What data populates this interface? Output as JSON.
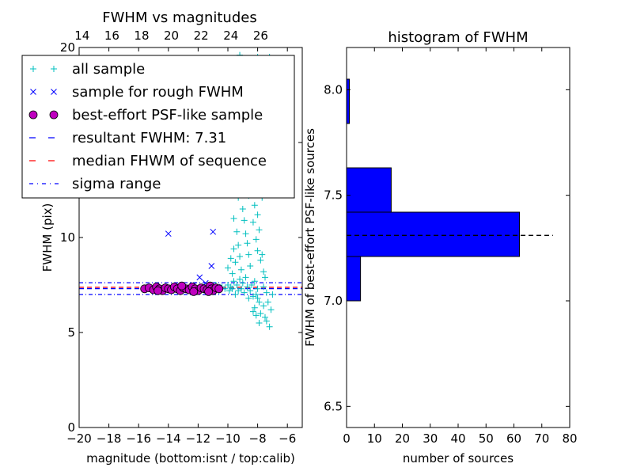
{
  "chart_data": [
    {
      "type": "scatter",
      "title": "FWHM vs magnitudes",
      "xlabel": "magnitude (bottom:isnt / top:calib)",
      "ylabel": "FWHM (pix)",
      "xlim": [
        -20,
        -5
      ],
      "ylim": [
        0,
        20
      ],
      "x_ticks": [
        -20,
        -18,
        -16,
        -14,
        -12,
        -10,
        -8,
        -6
      ],
      "x_tick_labels": [
        "−20",
        "−18",
        "−16",
        "−14",
        "−12",
        "−10",
        "−8",
        "−6"
      ],
      "y_ticks": [
        0,
        5,
        10,
        15,
        20
      ],
      "y_tick_labels": [
        "0",
        "5",
        "10",
        "15",
        "20"
      ],
      "top_ticks": [
        14,
        16,
        18,
        20,
        22,
        24,
        26
      ],
      "top_tick_labels": [
        "14",
        "16",
        "18",
        "20",
        "22",
        "24",
        "26"
      ],
      "top_axis_offset": 33.8,
      "legend_position": "upper-left",
      "legend": [
        {
          "label": "all sample",
          "marker": "plus",
          "color": "#00bfbf"
        },
        {
          "label": "sample for rough FWHM",
          "marker": "x",
          "color": "#0000ff"
        },
        {
          "label": "best-effort PSF-like sample",
          "marker": "circle",
          "color": "#bf00bf"
        },
        {
          "label": "resultant FWHM: 7.31",
          "marker": "dashed",
          "color": "#0000ff"
        },
        {
          "label": "median FHWM of sequence",
          "marker": "dashed",
          "color": "#ff0000"
        },
        {
          "label": "sigma range",
          "marker": "dashdot",
          "color": "#0000ff"
        }
      ],
      "series": [
        {
          "name": "all sample",
          "marker": "plus",
          "color": "#00bfbf",
          "points": [
            [
              -7.2,
              5.3
            ],
            [
              -7.4,
              5.6
            ],
            [
              -7.1,
              6.2
            ],
            [
              -7.5,
              5.8
            ],
            [
              -7.3,
              6.6
            ],
            [
              -7.6,
              6.4
            ],
            [
              -7.8,
              6.0
            ],
            [
              -7.9,
              5.5
            ],
            [
              -8.0,
              6.8
            ],
            [
              -8.1,
              7.0
            ],
            [
              -8.2,
              6.3
            ],
            [
              -8.3,
              6.9
            ],
            [
              -8.0,
              7.3
            ],
            [
              -8.4,
              7.5
            ],
            [
              -8.2,
              7.7
            ],
            [
              -8.5,
              7.2
            ],
            [
              -8.6,
              6.8
            ],
            [
              -8.7,
              7.4
            ],
            [
              -8.8,
              7.9
            ],
            [
              -8.9,
              7.1
            ],
            [
              -9.0,
              7.6
            ],
            [
              -9.1,
              7.3
            ],
            [
              -9.2,
              7.8
            ],
            [
              -9.3,
              7.2
            ],
            [
              -9.4,
              7.5
            ],
            [
              -9.5,
              7.0
            ],
            [
              -9.6,
              7.7
            ],
            [
              -9.7,
              7.3
            ],
            [
              -9.8,
              7.4
            ],
            [
              -9.9,
              7.2
            ],
            [
              -10.0,
              7.5
            ],
            [
              -10.2,
              7.3
            ],
            [
              -10.4,
              7.4
            ],
            [
              -10.6,
              7.2
            ],
            [
              -10.8,
              7.5
            ],
            [
              -11.0,
              7.3
            ],
            [
              -7.6,
              8.2
            ],
            [
              -7.8,
              8.8
            ],
            [
              -8.0,
              9.3
            ],
            [
              -8.1,
              9.9
            ],
            [
              -7.9,
              10.4
            ],
            [
              -8.3,
              10.8
            ],
            [
              -8.0,
              11.2
            ],
            [
              -8.2,
              11.7
            ],
            [
              -7.7,
              12.1
            ],
            [
              -8.4,
              12.6
            ],
            [
              -8.1,
              13.0
            ],
            [
              -7.9,
              13.5
            ],
            [
              -8.3,
              14.1
            ],
            [
              -8.0,
              14.7
            ],
            [
              -8.5,
              8.5
            ],
            [
              -8.6,
              9.1
            ],
            [
              -8.7,
              9.7
            ],
            [
              -8.8,
              10.2
            ],
            [
              -8.9,
              10.9
            ],
            [
              -9.0,
              11.5
            ],
            [
              -9.1,
              8.3
            ],
            [
              -9.2,
              9.0
            ],
            [
              -9.3,
              9.6
            ],
            [
              -9.4,
              10.3
            ],
            [
              -9.5,
              8.7
            ],
            [
              -9.6,
              9.4
            ],
            [
              -9.7,
              8.1
            ],
            [
              -9.8,
              8.9
            ],
            [
              -10.0,
              8.4
            ],
            [
              -7.5,
              7.9
            ],
            [
              -7.7,
              9.1
            ],
            [
              -8.6,
              12.2
            ],
            [
              -8.2,
              12.9
            ],
            [
              -8.4,
              13.7
            ],
            [
              -8.0,
              15.5
            ],
            [
              -8.3,
              16.2
            ],
            [
              -7.9,
              16.8
            ],
            [
              -8.1,
              17.4
            ],
            [
              -8.5,
              15.1
            ],
            [
              -8.8,
              14.3
            ],
            [
              -7.8,
              18.2
            ],
            [
              -8.2,
              18.9
            ],
            [
              -9.0,
              13.4
            ],
            [
              -9.3,
              12.1
            ],
            [
              -9.6,
              11.0
            ],
            [
              -8.0,
              19.5
            ],
            [
              -9.2,
              19.6
            ],
            [
              -9.6,
              19.2
            ],
            [
              -8.4,
              19.3
            ],
            [
              -10.2,
              19.4
            ],
            [
              -7.2,
              19.5
            ],
            [
              -8.7,
              19.1
            ],
            [
              -7.9,
              6.6
            ],
            [
              -8.1,
              5.9
            ],
            [
              -7.4,
              7.1
            ],
            [
              -7.6,
              7.4
            ],
            [
              -8.3,
              6.1
            ],
            [
              -7.0,
              7.0
            ]
          ]
        },
        {
          "name": "sample for rough FWHM",
          "marker": "x",
          "color": "#0000ff",
          "points": [
            [
              -14.0,
              10.2
            ],
            [
              -11.0,
              10.3
            ],
            [
              -11.1,
              8.5
            ],
            [
              -11.9,
              7.9
            ],
            [
              -11.5,
              7.6
            ],
            [
              -12.3,
              7.5
            ],
            [
              -13.2,
              7.4
            ],
            [
              -10.7,
              7.4
            ]
          ]
        },
        {
          "name": "best-effort PSF-like sample",
          "marker": "circle",
          "color": "#bf00bf",
          "points": [
            [
              -15.6,
              7.3
            ],
            [
              -15.3,
              7.35
            ],
            [
              -15.0,
              7.25
            ],
            [
              -14.8,
              7.4
            ],
            [
              -14.6,
              7.3
            ],
            [
              -14.4,
              7.2
            ],
            [
              -14.2,
              7.35
            ],
            [
              -14.0,
              7.3
            ],
            [
              -13.8,
              7.25
            ],
            [
              -13.6,
              7.4
            ],
            [
              -13.4,
              7.3
            ],
            [
              -13.2,
              7.2
            ],
            [
              -13.0,
              7.35
            ],
            [
              -12.8,
              7.3
            ],
            [
              -12.6,
              7.25
            ],
            [
              -12.4,
              7.4
            ],
            [
              -12.2,
              7.3
            ],
            [
              -12.0,
              7.2
            ],
            [
              -11.8,
              7.35
            ],
            [
              -11.6,
              7.3
            ],
            [
              -11.4,
              7.25
            ],
            [
              -11.2,
              7.45
            ],
            [
              -11.1,
              7.3
            ],
            [
              -11.0,
              7.2
            ],
            [
              -10.8,
              7.35
            ],
            [
              -10.6,
              7.3
            ],
            [
              -13.1,
              7.45
            ],
            [
              -12.3,
              7.15
            ],
            [
              -11.3,
              7.15
            ],
            [
              -14.7,
              7.2
            ]
          ]
        }
      ],
      "lines": [
        {
          "name": "resultant FWHM: 7.31",
          "y": 7.31,
          "style": "dashed",
          "color": "#0000ff"
        },
        {
          "name": "median FHWM of sequence",
          "y": 7.38,
          "style": "dashed",
          "color": "#ff0000"
        },
        {
          "name": "sigma range upper",
          "y": 7.62,
          "style": "dashdot",
          "color": "#0000ff"
        },
        {
          "name": "sigma range lower",
          "y": 7.0,
          "style": "dashdot",
          "color": "#0000ff"
        }
      ]
    },
    {
      "type": "bar",
      "orientation": "horizontal",
      "title": "histogram of FWHM",
      "xlabel": "number of sources",
      "ylabel": "FWHM of best-effort PSF-like sources",
      "xlim": [
        0,
        80
      ],
      "ylim": [
        6.4,
        8.2
      ],
      "x_ticks": [
        0,
        10,
        20,
        30,
        40,
        50,
        60,
        70,
        80
      ],
      "x_tick_labels": [
        "0",
        "10",
        "20",
        "30",
        "40",
        "50",
        "60",
        "70",
        "80"
      ],
      "y_ticks": [
        6.5,
        7.0,
        7.5,
        8.0
      ],
      "y_tick_labels": [
        "6.5",
        "7.0",
        "7.5",
        "8.0"
      ],
      "color": "#0000ff",
      "bins": [
        {
          "from": 7.0,
          "to": 7.21,
          "count": 5
        },
        {
          "from": 7.21,
          "to": 7.42,
          "count": 62
        },
        {
          "from": 7.42,
          "to": 7.63,
          "count": 16
        },
        {
          "from": 7.84,
          "to": 8.05,
          "count": 1
        }
      ],
      "reference_line": {
        "y": 7.31,
        "x_range": [
          0,
          74
        ],
        "style": "dashed",
        "color": "#000000"
      }
    }
  ]
}
